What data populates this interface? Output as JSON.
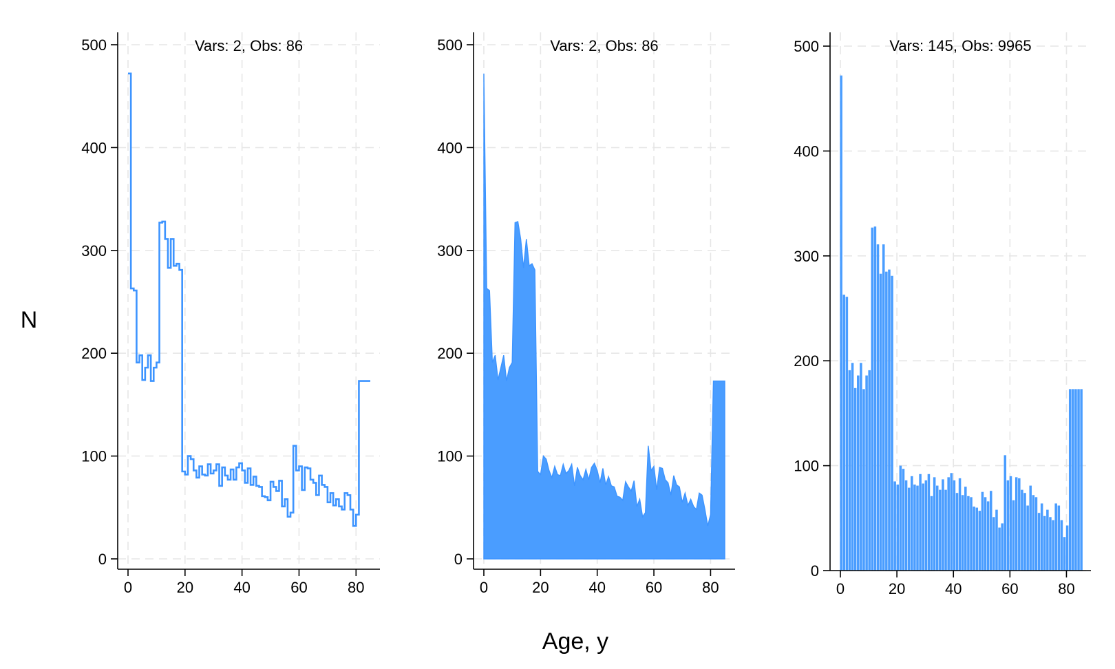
{
  "figure": {
    "ylabel": "N",
    "xlabel": "Age, y"
  },
  "colors": {
    "series": "#3d94ff",
    "series_fill": "#4a9dff",
    "grid": "#e6e6e6",
    "axis": "#000000"
  },
  "chart_data": [
    {
      "type": "line",
      "subtype": "step",
      "title": "Vars: 2, Obs: 86",
      "xlim": [
        0,
        85
      ],
      "ylim": [
        0,
        500
      ],
      "xticks": [
        0,
        20,
        40,
        60,
        80
      ],
      "yticks": [
        0,
        100,
        200,
        300,
        400,
        500
      ],
      "grid": true,
      "legend": "none",
      "x": [
        0,
        1,
        2,
        3,
        4,
        5,
        6,
        7,
        8,
        9,
        10,
        11,
        12,
        13,
        14,
        15,
        16,
        17,
        18,
        19,
        20,
        21,
        22,
        23,
        24,
        25,
        26,
        27,
        28,
        29,
        30,
        31,
        32,
        33,
        34,
        35,
        36,
        37,
        38,
        39,
        40,
        41,
        42,
        43,
        44,
        45,
        46,
        47,
        48,
        49,
        50,
        51,
        52,
        53,
        54,
        55,
        56,
        57,
        58,
        59,
        60,
        61,
        62,
        63,
        64,
        65,
        66,
        67,
        68,
        69,
        70,
        71,
        72,
        73,
        74,
        75,
        76,
        77,
        78,
        79,
        80,
        81,
        82,
        83,
        84,
        85
      ],
      "values": [
        472,
        263,
        261,
        191,
        198,
        174,
        186,
        198,
        173,
        186,
        191,
        327,
        328,
        311,
        283,
        311,
        285,
        287,
        281,
        85,
        82,
        100,
        97,
        86,
        79,
        90,
        82,
        81,
        92,
        83,
        86,
        92,
        71,
        89,
        81,
        77,
        87,
        77,
        89,
        93,
        86,
        74,
        88,
        72,
        80,
        71,
        70,
        61,
        60,
        57,
        75,
        70,
        66,
        76,
        51,
        58,
        41,
        45,
        110,
        86,
        90,
        67,
        89,
        88,
        77,
        74,
        62,
        81,
        72,
        70,
        55,
        64,
        52,
        58,
        51,
        48,
        64,
        62,
        48,
        32,
        43,
        173,
        173,
        173,
        173,
        173
      ]
    },
    {
      "type": "area",
      "title": "Vars: 2, Obs: 86",
      "xlim": [
        0,
        85
      ],
      "ylim": [
        0,
        500
      ],
      "xticks": [
        0,
        20,
        40,
        60,
        80
      ],
      "yticks": [
        0,
        100,
        200,
        300,
        400,
        500
      ],
      "grid": true,
      "legend": "none",
      "x": [
        0,
        1,
        2,
        3,
        4,
        5,
        6,
        7,
        8,
        9,
        10,
        11,
        12,
        13,
        14,
        15,
        16,
        17,
        18,
        19,
        20,
        21,
        22,
        23,
        24,
        25,
        26,
        27,
        28,
        29,
        30,
        31,
        32,
        33,
        34,
        35,
        36,
        37,
        38,
        39,
        40,
        41,
        42,
        43,
        44,
        45,
        46,
        47,
        48,
        49,
        50,
        51,
        52,
        53,
        54,
        55,
        56,
        57,
        58,
        59,
        60,
        61,
        62,
        63,
        64,
        65,
        66,
        67,
        68,
        69,
        70,
        71,
        72,
        73,
        74,
        75,
        76,
        77,
        78,
        79,
        80,
        81,
        82,
        83,
        84,
        85
      ],
      "values": [
        472,
        263,
        261,
        191,
        198,
        174,
        186,
        198,
        173,
        186,
        191,
        327,
        328,
        311,
        283,
        311,
        285,
        287,
        281,
        85,
        82,
        100,
        97,
        86,
        79,
        90,
        82,
        81,
        92,
        83,
        86,
        92,
        71,
        89,
        81,
        77,
        87,
        77,
        89,
        93,
        86,
        74,
        88,
        72,
        80,
        71,
        70,
        61,
        60,
        57,
        75,
        70,
        66,
        76,
        51,
        58,
        41,
        45,
        110,
        86,
        90,
        67,
        89,
        88,
        77,
        74,
        62,
        81,
        72,
        70,
        55,
        64,
        52,
        58,
        51,
        48,
        64,
        62,
        48,
        32,
        43,
        173,
        173,
        173,
        173,
        173
      ]
    },
    {
      "type": "bar",
      "title": "Vars: 145, Obs: 9965",
      "xlim": [
        0,
        85
      ],
      "ylim": [
        0,
        500
      ],
      "xticks": [
        0,
        20,
        40,
        60,
        80
      ],
      "yticks": [
        0,
        100,
        200,
        300,
        400,
        500
      ],
      "grid": true,
      "legend": "none",
      "x": [
        0,
        1,
        2,
        3,
        4,
        5,
        6,
        7,
        8,
        9,
        10,
        11,
        12,
        13,
        14,
        15,
        16,
        17,
        18,
        19,
        20,
        21,
        22,
        23,
        24,
        25,
        26,
        27,
        28,
        29,
        30,
        31,
        32,
        33,
        34,
        35,
        36,
        37,
        38,
        39,
        40,
        41,
        42,
        43,
        44,
        45,
        46,
        47,
        48,
        49,
        50,
        51,
        52,
        53,
        54,
        55,
        56,
        57,
        58,
        59,
        60,
        61,
        62,
        63,
        64,
        65,
        66,
        67,
        68,
        69,
        70,
        71,
        72,
        73,
        74,
        75,
        76,
        77,
        78,
        79,
        80,
        81,
        82,
        83,
        84,
        85
      ],
      "values": [
        472,
        263,
        261,
        191,
        198,
        174,
        186,
        198,
        173,
        186,
        191,
        327,
        328,
        311,
        283,
        311,
        285,
        287,
        281,
        85,
        82,
        100,
        97,
        86,
        79,
        90,
        82,
        81,
        92,
        83,
        86,
        92,
        71,
        89,
        81,
        77,
        87,
        77,
        89,
        93,
        86,
        74,
        88,
        72,
        80,
        71,
        70,
        61,
        60,
        57,
        75,
        70,
        66,
        76,
        51,
        58,
        41,
        45,
        110,
        86,
        90,
        67,
        89,
        88,
        77,
        74,
        62,
        81,
        72,
        70,
        55,
        64,
        52,
        58,
        51,
        48,
        64,
        62,
        48,
        32,
        43,
        173,
        173,
        173,
        173,
        173
      ]
    }
  ]
}
